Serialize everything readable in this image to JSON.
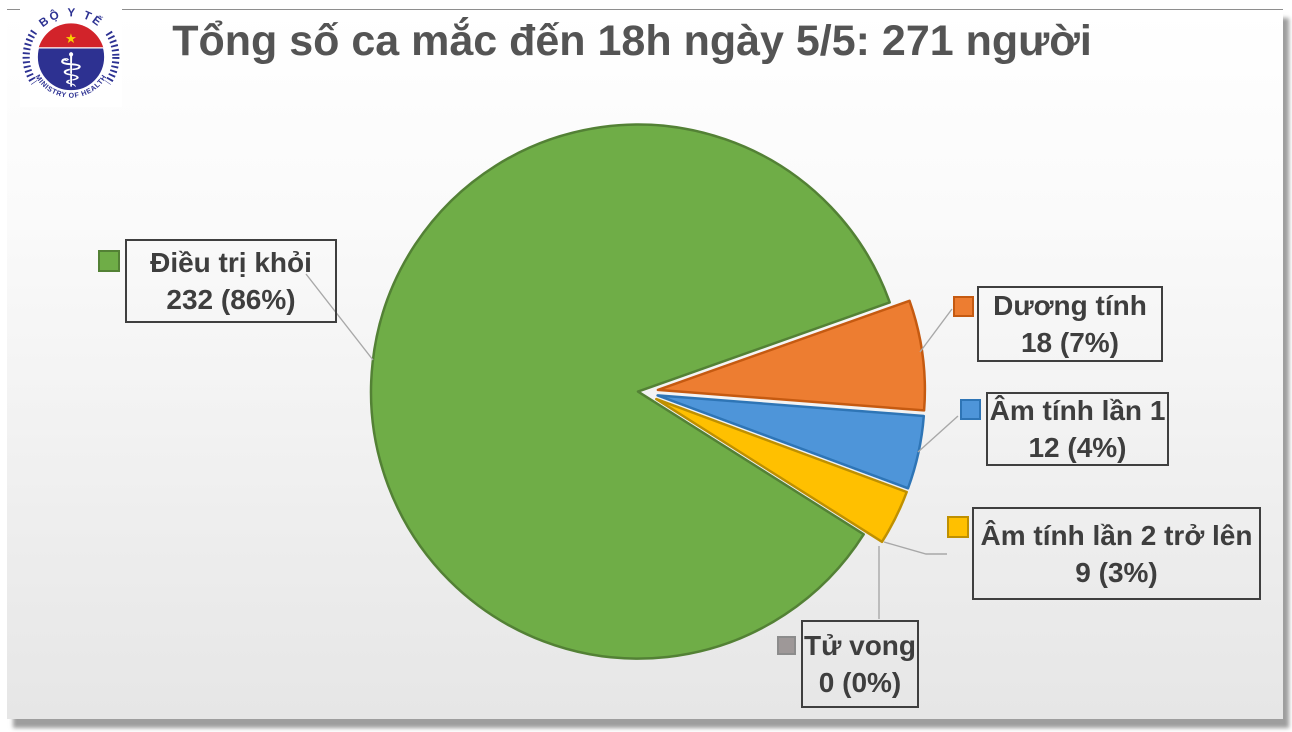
{
  "slide": {
    "title": "Tổng số ca mắc đến 18h ngày 5/5: 271 người"
  },
  "logo": {
    "arc_top_text": "BỘ Y TẾ",
    "arc_bottom_text": "MINISTRY OF HEALTH",
    "star_icon": "★",
    "staff_icon": "⚕"
  },
  "chart_data": {
    "type": "pie",
    "title": "Tổng số ca mắc đến 18h ngày 5/5: 271 người",
    "total": 271,
    "unit": "người",
    "start_angle_deg": 70.5,
    "legend_position": "callout-labels",
    "slices": [
      {
        "label": "Điều trị khỏi",
        "value": 232,
        "percent": 86,
        "display": "232 (86%)",
        "color": "#6FAD47",
        "stroke": "#538135"
      },
      {
        "label": "Dương tính",
        "value": 18,
        "percent": 7,
        "display": "18 (7%)",
        "color": "#ED7D31",
        "stroke": "#C55A11"
      },
      {
        "label": "Âm tính lần 1",
        "value": 12,
        "percent": 4,
        "display": "12 (4%)",
        "color": "#4E95D9",
        "stroke": "#2E75B6"
      },
      {
        "label": "Âm tính lần 2 trở lên",
        "value": 9,
        "percent": 3,
        "display": "9 (3%)",
        "color": "#FFC000",
        "stroke": "#BF9000"
      },
      {
        "label": "Tử vong",
        "value": 0,
        "percent": 0,
        "display": "0 (0%)",
        "color": "#A6A6A6",
        "stroke": "#8C8C8C"
      }
    ]
  }
}
